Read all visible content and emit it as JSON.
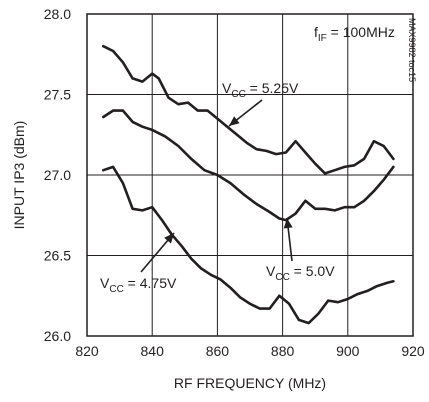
{
  "chart_data": {
    "type": "line",
    "xlabel": "RF FREQUENCY (MHz)",
    "ylabel": "INPUT IP3 (dBm)",
    "xlim": [
      820,
      920
    ],
    "ylim": [
      26.0,
      28.0
    ],
    "x_ticks": [
      820,
      840,
      860,
      880,
      900,
      920
    ],
    "x_tick_labels": [
      "820",
      "840",
      "860",
      "880",
      "900",
      "920"
    ],
    "y_ticks": [
      26.0,
      26.5,
      27.0,
      27.5,
      28.0
    ],
    "y_tick_labels": [
      "26.0",
      "26.5",
      "27.0",
      "27.5",
      "28.0"
    ],
    "grid": true,
    "watermark": "MAX9982 toc15",
    "condition": {
      "main": "f",
      "sub": "IF",
      "rest": " = 100MHz"
    },
    "series": [
      {
        "name": "VCC = 5.25V",
        "label_main": "V",
        "label_sub": "CC",
        "label_rest": " = 5.25V",
        "x": [
          825,
          828,
          831,
          834,
          837,
          840,
          842,
          845,
          848,
          851,
          854,
          857,
          860,
          863,
          866,
          869,
          872,
          875,
          878,
          881,
          884,
          887,
          890,
          893,
          896,
          899,
          902,
          905,
          908,
          911,
          914
        ],
        "values": [
          27.8,
          27.77,
          27.7,
          27.6,
          27.58,
          27.63,
          27.6,
          27.48,
          27.44,
          27.45,
          27.4,
          27.4,
          27.35,
          27.3,
          27.25,
          27.2,
          27.16,
          27.15,
          27.13,
          27.14,
          27.21,
          27.14,
          27.07,
          27.01,
          27.03,
          27.05,
          27.06,
          27.1,
          27.21,
          27.18,
          27.1
        ]
      },
      {
        "name": "VCC = 5.0V",
        "label_main": "V",
        "label_sub": "CC",
        "label_rest": " = 5.0V",
        "x": [
          825,
          828,
          831,
          834,
          837,
          840,
          844,
          848,
          852,
          856,
          860,
          864,
          868,
          872,
          876,
          879,
          881,
          884,
          887,
          890,
          893,
          896,
          899,
          902,
          905,
          908,
          911,
          914
        ],
        "values": [
          27.36,
          27.4,
          27.4,
          27.33,
          27.3,
          27.28,
          27.24,
          27.18,
          27.1,
          27.03,
          27.0,
          26.95,
          26.88,
          26.82,
          26.77,
          26.73,
          26.72,
          26.76,
          26.84,
          26.79,
          26.79,
          26.78,
          26.8,
          26.8,
          26.84,
          26.9,
          26.97,
          27.05
        ]
      },
      {
        "name": "VCC = 4.75V",
        "label_main": "V",
        "label_sub": "CC",
        "label_rest": " = 4.75V",
        "x": [
          825,
          828,
          831,
          834,
          837,
          840,
          843,
          846,
          849,
          852,
          855,
          858,
          861,
          864,
          867,
          870,
          873,
          876,
          879,
          882,
          885,
          888,
          891,
          894,
          897,
          900,
          903,
          906,
          909,
          912,
          914
        ],
        "values": [
          27.03,
          27.05,
          26.95,
          26.79,
          26.78,
          26.8,
          26.72,
          26.63,
          26.56,
          26.48,
          26.42,
          26.38,
          26.35,
          26.3,
          26.24,
          26.2,
          26.17,
          26.17,
          26.25,
          26.2,
          26.1,
          26.08,
          26.14,
          26.22,
          26.21,
          26.23,
          26.26,
          26.28,
          26.31,
          26.33,
          26.34
        ]
      }
    ]
  }
}
